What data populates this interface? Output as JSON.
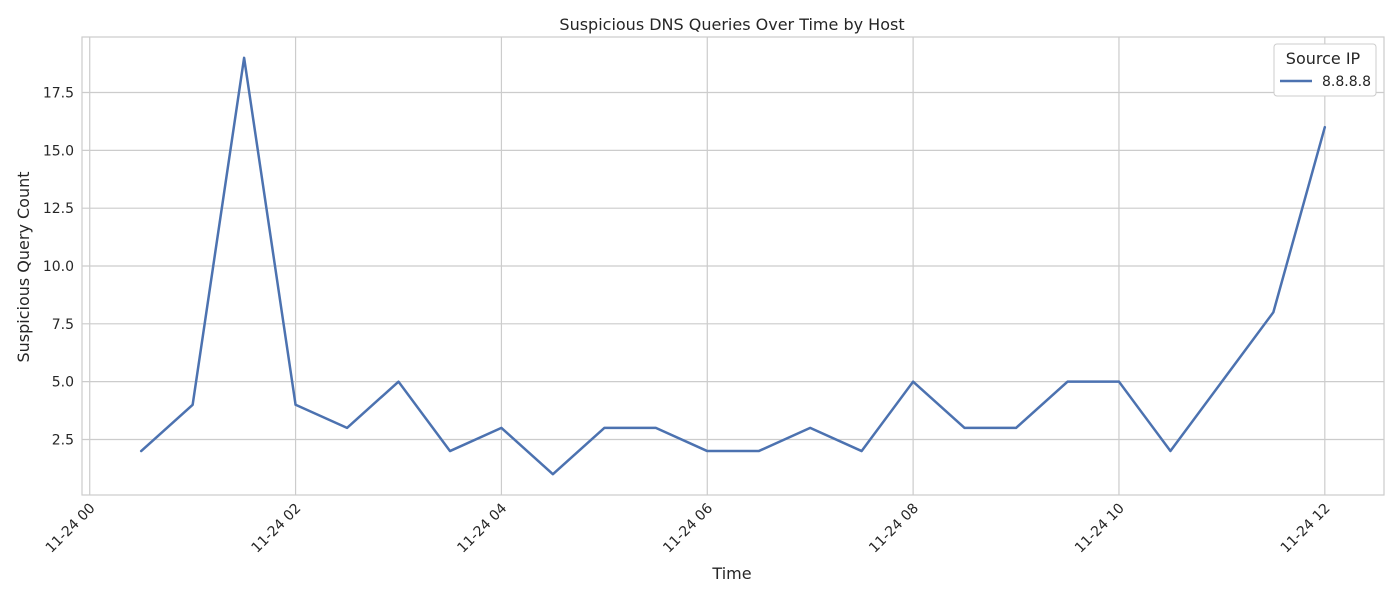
{
  "chart_data": {
    "type": "line",
    "title": "Suspicious DNS Queries Over Time by Host",
    "xlabel": "Time",
    "ylabel": "Suspicious Query Count",
    "x_ticks": [
      "11-24 00",
      "11-24 02",
      "11-24 04",
      "11-24 06",
      "11-24 08",
      "11-24 10",
      "11-24 12"
    ],
    "y_ticks": [
      "2.5",
      "5.0",
      "7.5",
      "10.0",
      "12.5",
      "15.0",
      "17.5"
    ],
    "xlim": [
      "2024-11-24 00:00",
      "2024-11-24 12:00"
    ],
    "ylim": [
      0.1,
      19.9
    ],
    "grid": true,
    "legend": {
      "title": "Source IP",
      "placement": "top-right"
    },
    "x": [
      "00:30",
      "01:00",
      "01:30",
      "02:00",
      "02:30",
      "03:00",
      "03:30",
      "04:00",
      "04:30",
      "05:00",
      "05:30",
      "06:00",
      "06:30",
      "07:00",
      "07:30",
      "08:00",
      "08:30",
      "09:00",
      "09:30",
      "10:00",
      "10:30",
      "11:00",
      "11:30",
      "12:00"
    ],
    "series": [
      {
        "name": "8.8.8.8",
        "color": "#4c72b0",
        "values": [
          2,
          4,
          19,
          4,
          3,
          5,
          2,
          3,
          1,
          3,
          3,
          2,
          2,
          3,
          2,
          5,
          3,
          3,
          5,
          5,
          2,
          5,
          8,
          16
        ]
      }
    ]
  }
}
